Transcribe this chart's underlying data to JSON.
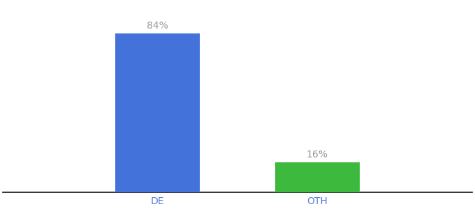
{
  "categories": [
    "DE",
    "OTH"
  ],
  "values": [
    84,
    16
  ],
  "bar_colors": [
    "#4472db",
    "#3dba3d"
  ],
  "labels": [
    "84%",
    "16%"
  ],
  "background_color": "#ffffff",
  "label_color": "#999999",
  "tick_color": "#5b7fd4",
  "ylim": [
    0,
    100
  ],
  "bar_width": 0.18,
  "x_positions": [
    0.33,
    0.67
  ],
  "xlim": [
    0.0,
    1.0
  ],
  "figsize": [
    6.8,
    3.0
  ],
  "dpi": 100
}
